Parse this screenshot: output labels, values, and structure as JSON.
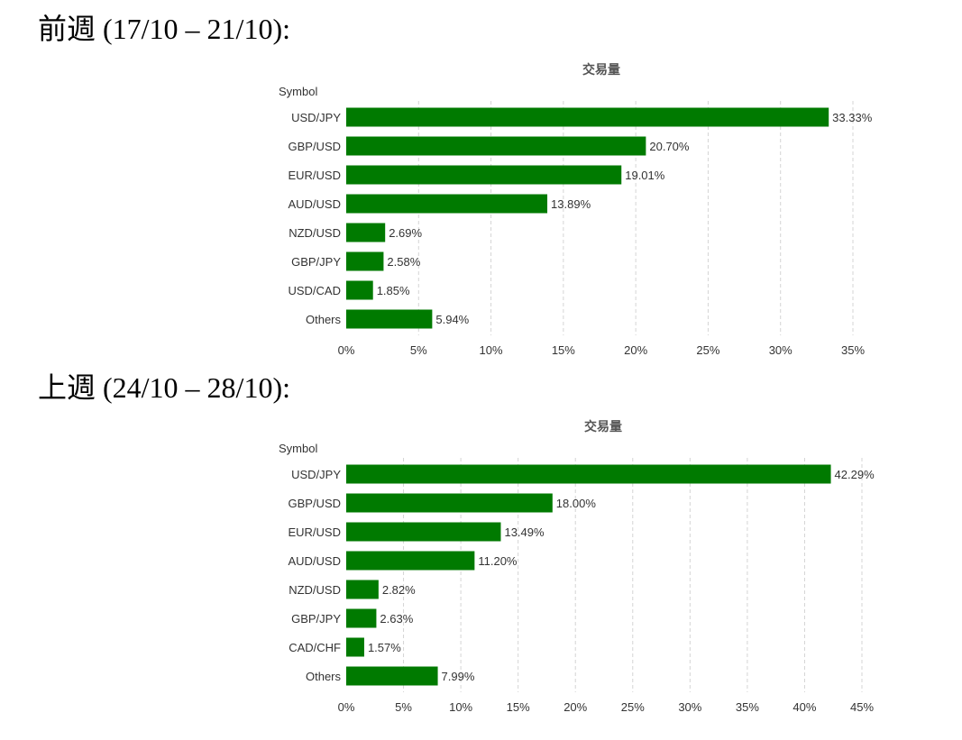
{
  "sections": [
    {
      "heading": "前週 (17/10 – 21/10):"
    },
    {
      "heading": "上週 (24/10 – 28/10):"
    }
  ],
  "colors": {
    "bar": "#007A00"
  },
  "chart_data": [
    {
      "type": "bar",
      "orientation": "horizontal",
      "title": "交易量",
      "ylabel": "Symbol",
      "xlabel": "",
      "categories": [
        "USD/JPY",
        "GBP/USD",
        "EUR/USD",
        "AUD/USD",
        "NZD/USD",
        "GBP/JPY",
        "USD/CAD",
        "Others"
      ],
      "values": [
        33.33,
        20.7,
        19.01,
        13.89,
        2.69,
        2.58,
        1.85,
        5.94
      ],
      "value_labels": [
        "33.33%",
        "20.70%",
        "19.01%",
        "13.89%",
        "2.69%",
        "2.58%",
        "1.85%",
        "5.94%"
      ],
      "xlim": [
        0,
        35
      ],
      "xticks": [
        0,
        5,
        10,
        15,
        20,
        25,
        30,
        35
      ],
      "xtick_labels": [
        "0%",
        "5%",
        "10%",
        "15%",
        "20%",
        "25%",
        "30%",
        "35%"
      ],
      "grid": true,
      "legend": "none"
    },
    {
      "type": "bar",
      "orientation": "horizontal",
      "title": "交易量",
      "ylabel": "Symbol",
      "xlabel": "",
      "categories": [
        "USD/JPY",
        "GBP/USD",
        "EUR/USD",
        "AUD/USD",
        "NZD/USD",
        "GBP/JPY",
        "CAD/CHF",
        "Others"
      ],
      "values": [
        42.29,
        18.0,
        13.49,
        11.2,
        2.82,
        2.63,
        1.57,
        7.99
      ],
      "value_labels": [
        "42.29%",
        "18.00%",
        "13.49%",
        "11.20%",
        "2.82%",
        "2.63%",
        "1.57%",
        "7.99%"
      ],
      "xlim": [
        0,
        45
      ],
      "xticks": [
        0,
        5,
        10,
        15,
        20,
        25,
        30,
        35,
        40,
        45
      ],
      "xtick_labels": [
        "0%",
        "5%",
        "10%",
        "15%",
        "20%",
        "25%",
        "30%",
        "35%",
        "40%",
        "45%"
      ],
      "grid": true,
      "legend": "none"
    }
  ]
}
